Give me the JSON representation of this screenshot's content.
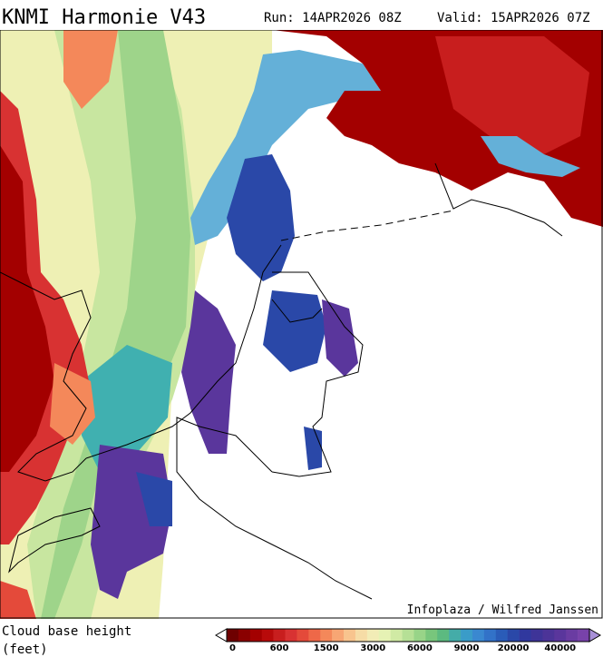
{
  "header": {
    "title": "KNMI Harmonie V43",
    "run": "Run: 14APR2026 08Z",
    "valid": "Valid: 15APR2026 07Z"
  },
  "map": {
    "credit": "Infoplaza / Wilfred Janssen"
  },
  "legend": {
    "label_line1": "Cloud base height",
    "label_line2": "(feet)",
    "colors": [
      "#6e0000",
      "#8a0000",
      "#a30000",
      "#b80a0a",
      "#c81e1e",
      "#d83232",
      "#e44a3a",
      "#ee6848",
      "#f4885a",
      "#f7a674",
      "#f8c48e",
      "#f6dca6",
      "#f2ecb6",
      "#e6f2b4",
      "#d0eaa4",
      "#b6e096",
      "#98d488",
      "#78c67c",
      "#5cba80",
      "#44aca8",
      "#3a9cc8",
      "#3a88d0",
      "#3272c8",
      "#2a5cb8",
      "#2a48a8",
      "#30389e",
      "#3e3498",
      "#4c3498",
      "#5a369c",
      "#6a3ca2",
      "#7842aa"
    ],
    "ticks": [
      0,
      600,
      1500,
      3000,
      6000,
      9000,
      20000,
      40000
    ]
  }
}
